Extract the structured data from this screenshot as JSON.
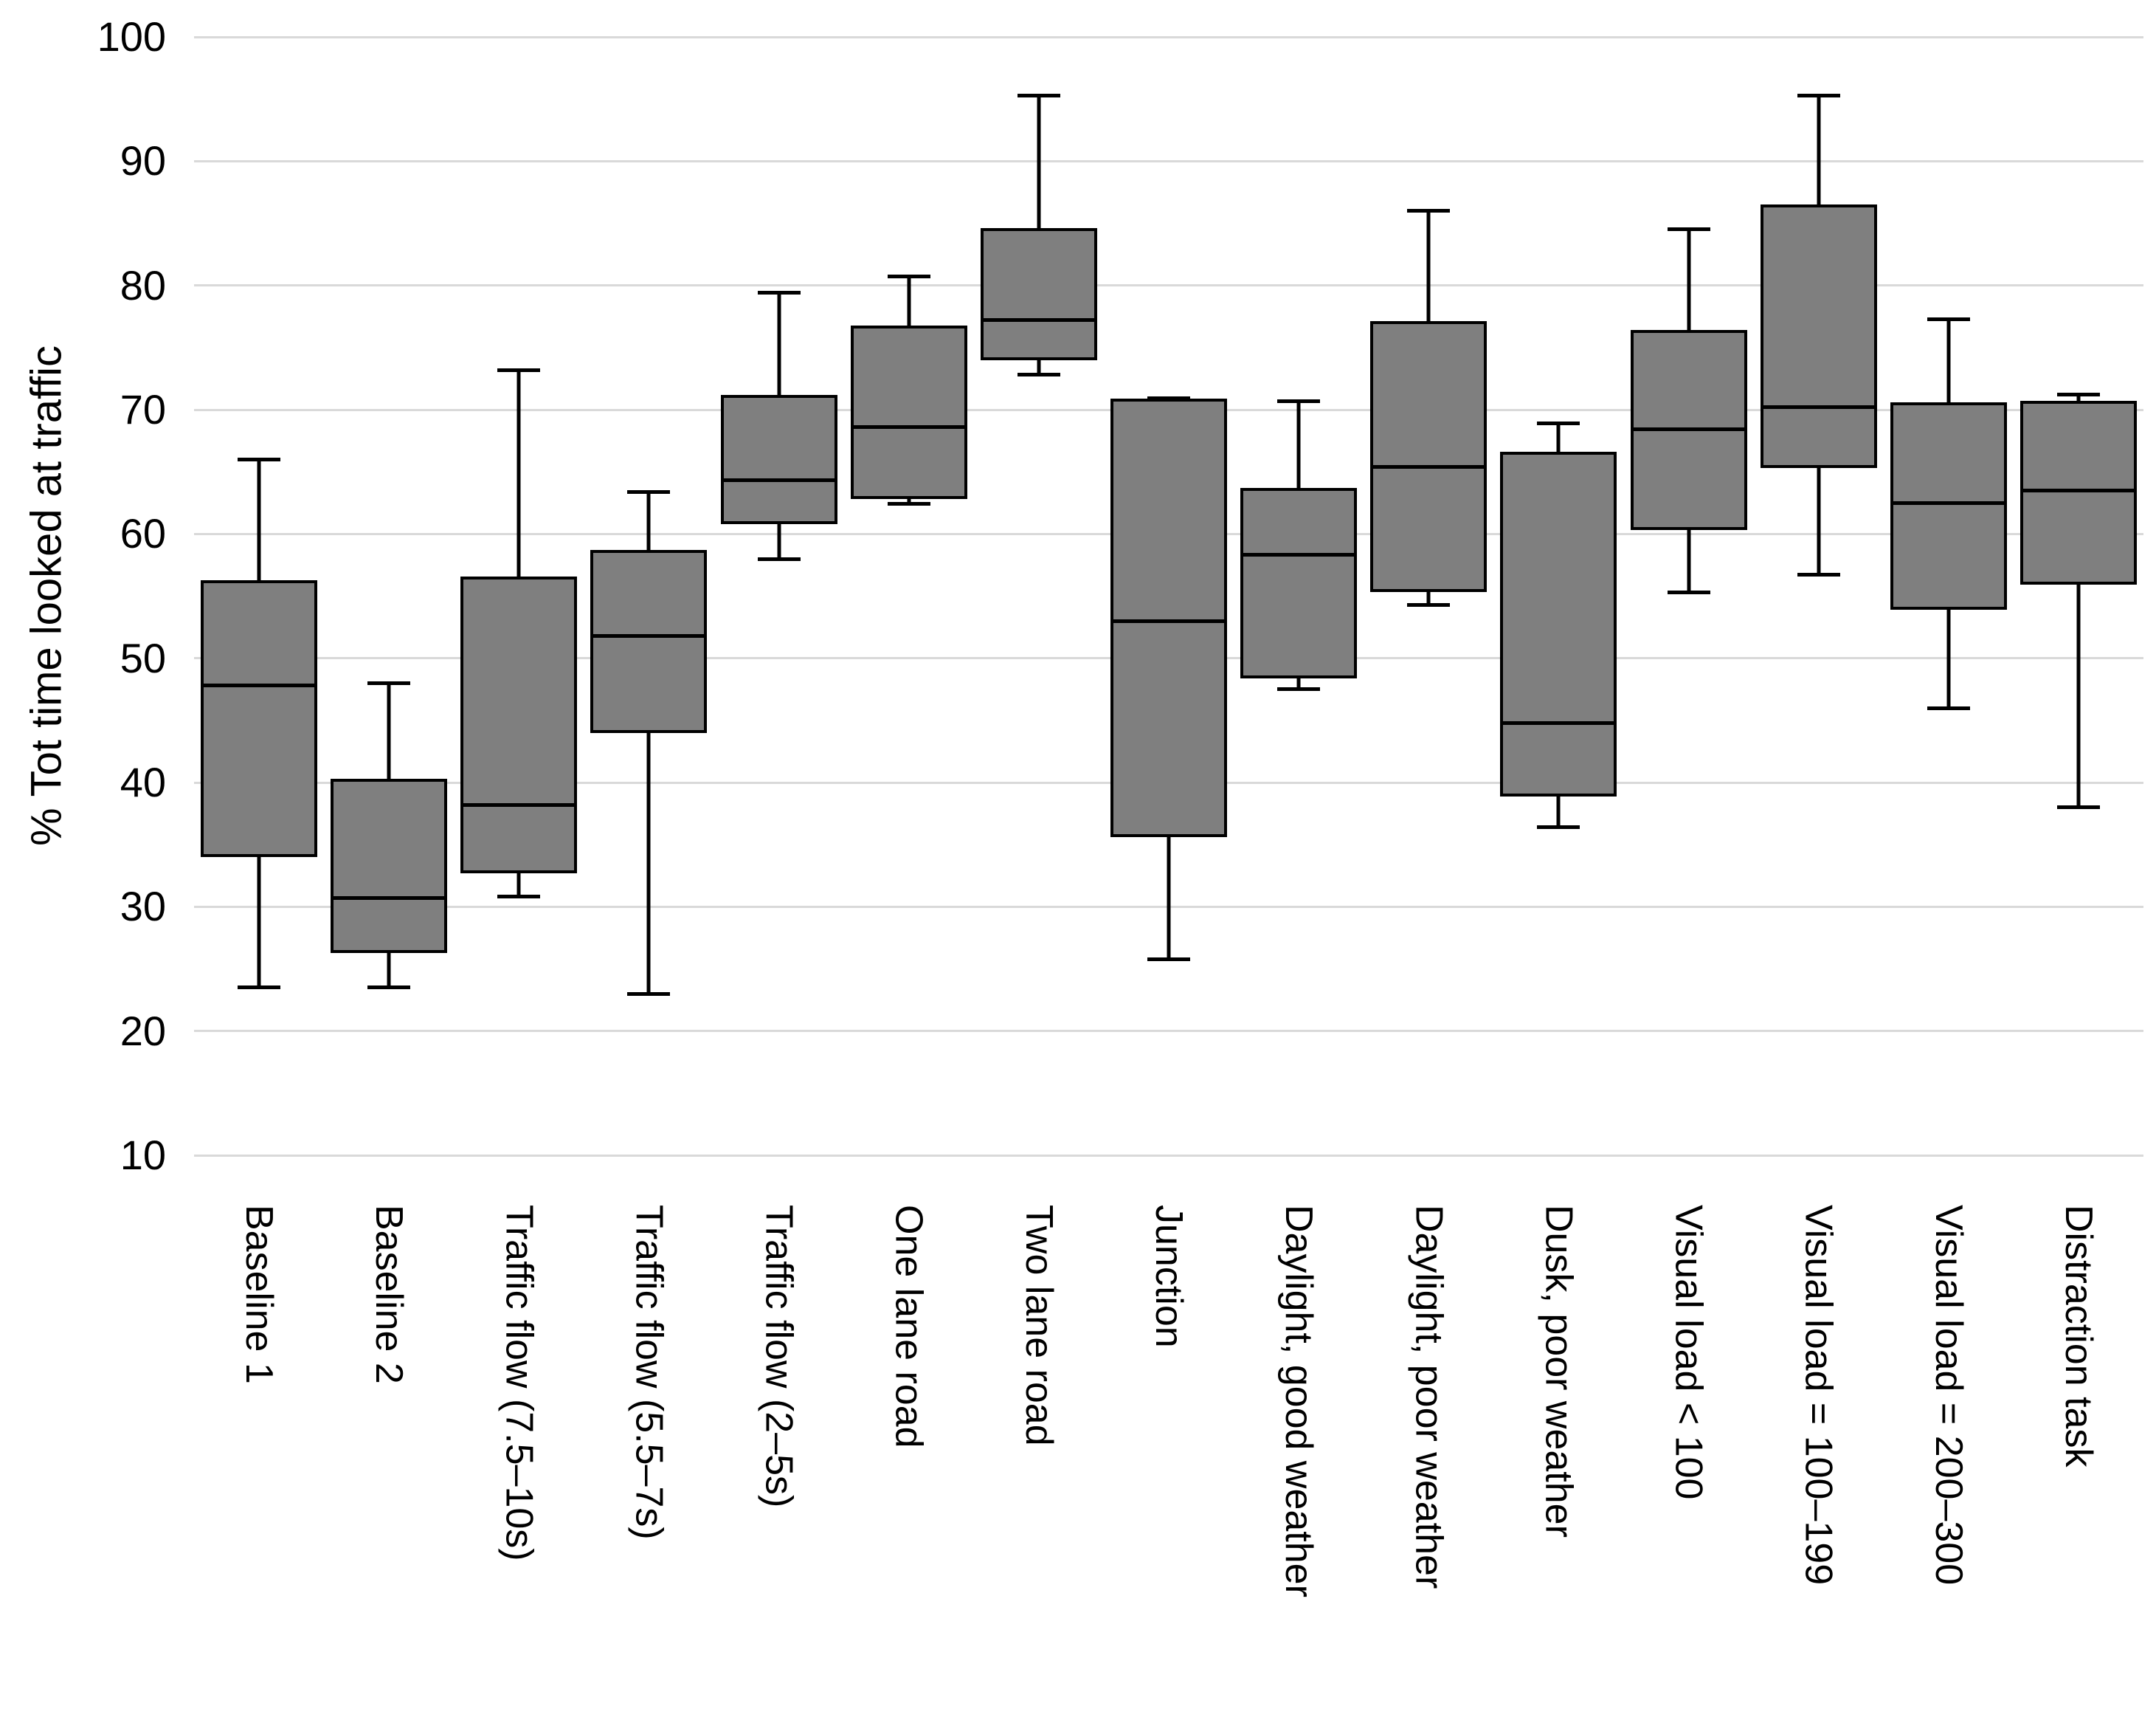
{
  "chart_data": {
    "type": "boxplot",
    "title": "",
    "xlabel": "",
    "ylabel": "% Tot time looked at traffic",
    "ylim": [
      10,
      100
    ],
    "yticks": [
      100,
      90,
      80,
      70,
      60,
      50,
      40,
      30,
      20,
      10
    ],
    "grid": true,
    "legend_position": "none",
    "categories": [
      "Baseline 1",
      "Baseline 2",
      "Traffic flow (7.5–10s)",
      "Traffic flow (5.5–7s)",
      "Traffic flow (2–5s)",
      "One lane road",
      "Two lane road",
      "Junction",
      "Daylight, good weather",
      "Daylight, poor weather",
      "Dusk, poor weather",
      "Visual load < 100",
      "Visual load = 100–199",
      "Visual load = 200–300",
      "Distraction task"
    ],
    "boxes": [
      {
        "label": "Baseline 1",
        "min": 23.5,
        "q1": 34.0,
        "median": 47.8,
        "q3": 56.3,
        "max": 66.0
      },
      {
        "label": "Baseline 2",
        "min": 23.5,
        "q1": 26.3,
        "median": 30.7,
        "q3": 40.3,
        "max": 48.0
      },
      {
        "label": "Traffic flow (7.5–10s)",
        "min": 30.8,
        "q1": 32.7,
        "median": 38.2,
        "q3": 56.6,
        "max": 73.2
      },
      {
        "label": "Traffic flow (5.5–7s)",
        "min": 23.0,
        "q1": 44.0,
        "median": 51.8,
        "q3": 58.7,
        "max": 63.4
      },
      {
        "label": "Traffic flow (2–5s)",
        "min": 58.0,
        "q1": 60.8,
        "median": 64.3,
        "q3": 71.2,
        "max": 79.4
      },
      {
        "label": "One lane road",
        "min": 62.4,
        "q1": 62.8,
        "median": 68.6,
        "q3": 76.8,
        "max": 80.7
      },
      {
        "label": "Two lane road",
        "min": 72.8,
        "q1": 74.0,
        "median": 77.2,
        "q3": 84.6,
        "max": 95.3
      },
      {
        "label": "Junction",
        "min": 25.8,
        "q1": 35.6,
        "median": 53.0,
        "q3": 70.9,
        "max": 70.9
      },
      {
        "label": "Daylight, good weather",
        "min": 47.5,
        "q1": 48.4,
        "median": 58.3,
        "q3": 63.7,
        "max": 70.7
      },
      {
        "label": "Daylight, poor weather",
        "min": 54.3,
        "q1": 55.3,
        "median": 65.4,
        "q3": 77.1,
        "max": 86.0
      },
      {
        "label": "Dusk, poor weather",
        "min": 36.4,
        "q1": 38.9,
        "median": 44.8,
        "q3": 66.6,
        "max": 68.9
      },
      {
        "label": "Visual load < 100",
        "min": 55.3,
        "q1": 60.3,
        "median": 68.4,
        "q3": 76.4,
        "max": 84.5
      },
      {
        "label": "Visual load = 100–199",
        "min": 56.7,
        "q1": 65.3,
        "median": 70.2,
        "q3": 86.5,
        "max": 95.3
      },
      {
        "label": "Visual load = 200–300",
        "min": 46.0,
        "q1": 53.9,
        "median": 62.5,
        "q3": 70.6,
        "max": 77.3
      },
      {
        "label": "Distraction task",
        "min": 38.0,
        "q1": 55.9,
        "median": 63.5,
        "q3": 70.7,
        "max": 71.2
      }
    ]
  },
  "style": {
    "background": "#ffffff",
    "box_fill": "#7f7f7f",
    "box_border": "#000000",
    "median_color": "#000000",
    "whisker_color": "#000000",
    "gridline_color": "#d9d9d9",
    "text_color": "#000000"
  },
  "layout_note": "y axis 10–100, gridlines every 10, category labels rotated reading top-to-bottom"
}
